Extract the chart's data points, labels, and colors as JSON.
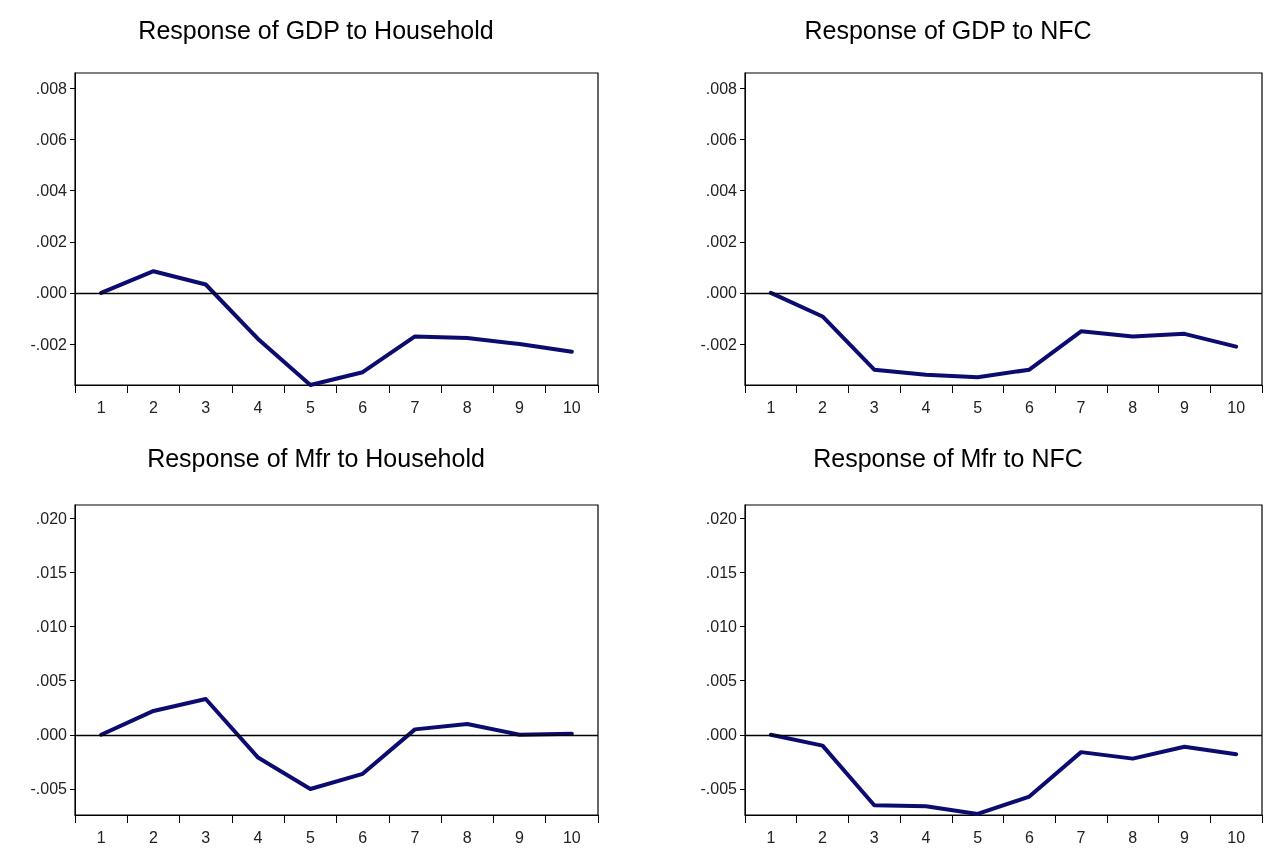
{
  "chart_data": [
    {
      "type": "line",
      "title": "Response of GDP to Household",
      "categories": [
        "1",
        "2",
        "3",
        "4",
        "5",
        "6",
        "7",
        "8",
        "9",
        "10"
      ],
      "series": [
        {
          "color": "#0c0c70",
          "values": [
            0,
            0.00085,
            0.00033,
            -0.0018,
            -0.0036,
            -0.0031,
            -0.0017,
            -0.00176,
            -0.002,
            -0.0023
          ]
        }
      ],
      "ylim": [
        -0.0036,
        0.0086
      ],
      "yticks": [
        {
          "value": -0.002,
          "label": "-.002"
        },
        {
          "value": 0,
          "label": ".000"
        },
        {
          "value": 0.002,
          "label": ".002"
        },
        {
          "value": 0.004,
          "label": ".004"
        },
        {
          "value": 0.006,
          "label": ".006"
        },
        {
          "value": 0.008,
          "label": ".008"
        }
      ],
      "ref_lines": [
        {
          "axis": "y",
          "value": 0,
          "color": "#000000"
        }
      ],
      "marker": "none",
      "grid": false
    },
    {
      "type": "line",
      "title": "Response of GDP to NFC",
      "categories": [
        "1",
        "2",
        "3",
        "4",
        "5",
        "6",
        "7",
        "8",
        "9",
        "10"
      ],
      "series": [
        {
          "color": "#0c0c70",
          "values": [
            0,
            -0.00092,
            -0.003,
            -0.0032,
            -0.0033,
            -0.003,
            -0.0015,
            -0.0017,
            -0.0016,
            -0.0021
          ]
        }
      ],
      "ylim": [
        -0.0036,
        0.0086
      ],
      "yticks": [
        {
          "value": -0.002,
          "label": "-.002"
        },
        {
          "value": 0,
          "label": ".000"
        },
        {
          "value": 0.002,
          "label": ".002"
        },
        {
          "value": 0.004,
          "label": ".004"
        },
        {
          "value": 0.006,
          "label": ".006"
        },
        {
          "value": 0.008,
          "label": ".008"
        }
      ],
      "ref_lines": [
        {
          "axis": "y",
          "value": 0,
          "color": "#000000"
        }
      ],
      "marker": "none",
      "grid": false
    },
    {
      "type": "line",
      "title": "Response of Mfr to Household",
      "categories": [
        "1",
        "2",
        "3",
        "4",
        "5",
        "6",
        "7",
        "8",
        "9",
        "10"
      ],
      "series": [
        {
          "color": "#0c0c70",
          "values": [
            0,
            0.0022,
            0.0033,
            -0.0021,
            -0.005,
            -0.0036,
            0.0005,
            0.001,
            0,
            0.0001
          ]
        }
      ],
      "ylim": [
        -0.0074,
        0.0212
      ],
      "yticks": [
        {
          "value": -0.005,
          "label": "-.005"
        },
        {
          "value": 0,
          "label": ".000"
        },
        {
          "value": 0.005,
          "label": ".005"
        },
        {
          "value": 0.01,
          "label": ".010"
        },
        {
          "value": 0.015,
          "label": ".015"
        },
        {
          "value": 0.02,
          "label": ".020"
        }
      ],
      "ref_lines": [
        {
          "axis": "y",
          "value": 0,
          "color": "#000000"
        }
      ],
      "marker": "none",
      "grid": false
    },
    {
      "type": "line",
      "title": "Response of Mfr to NFC",
      "categories": [
        "1",
        "2",
        "3",
        "4",
        "5",
        "6",
        "7",
        "8",
        "9",
        "10"
      ],
      "series": [
        {
          "color": "#0c0c70",
          "values": [
            0,
            -0.001,
            -0.0065,
            -0.0066,
            -0.0073,
            -0.0057,
            -0.0016,
            -0.0022,
            -0.0011,
            -0.0018
          ]
        }
      ],
      "ylim": [
        -0.0074,
        0.0212
      ],
      "yticks": [
        {
          "value": -0.005,
          "label": "-.005"
        },
        {
          "value": 0,
          "label": ".000"
        },
        {
          "value": 0.005,
          "label": ".005"
        },
        {
          "value": 0.01,
          "label": ".010"
        },
        {
          "value": 0.015,
          "label": ".015"
        },
        {
          "value": 0.02,
          "label": ".020"
        }
      ],
      "ref_lines": [
        {
          "axis": "y",
          "value": 0,
          "color": "#000000"
        }
      ],
      "marker": "none",
      "grid": false
    }
  ]
}
